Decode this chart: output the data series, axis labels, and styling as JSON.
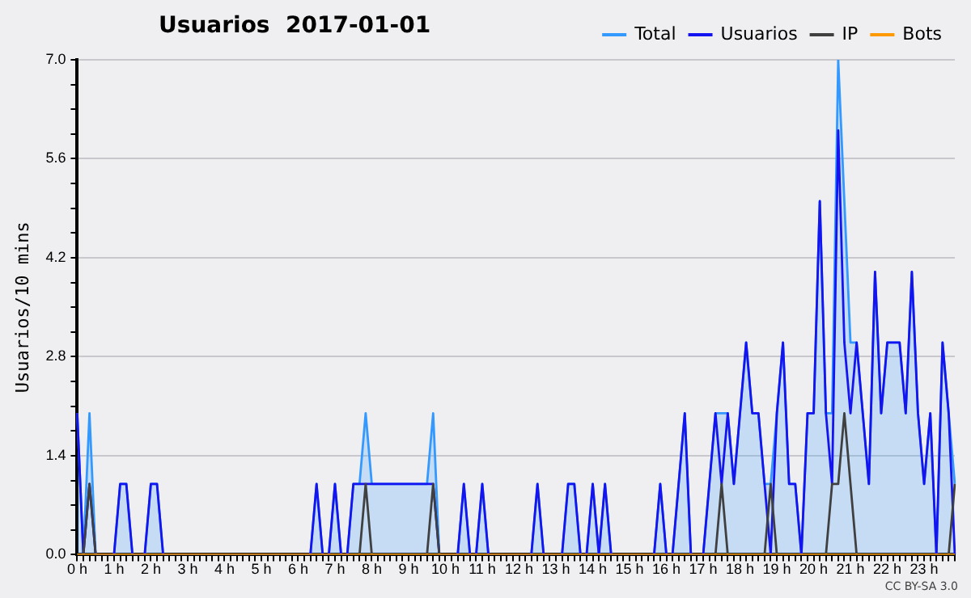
{
  "chart_data": {
    "type": "line",
    "title": "Usuarios  2017-01-01",
    "ylabel": "Usuarios/10 mins",
    "categories": [
      "0 h",
      null,
      null,
      null,
      null,
      null,
      "1 h",
      null,
      null,
      null,
      null,
      null,
      "2 h",
      null,
      null,
      null,
      null,
      null,
      "3 h",
      null,
      null,
      null,
      null,
      null,
      "4 h",
      null,
      null,
      null,
      null,
      null,
      "5 h",
      null,
      null,
      null,
      null,
      null,
      "6 h",
      null,
      null,
      null,
      null,
      null,
      "7 h",
      null,
      null,
      null,
      null,
      null,
      "8 h",
      null,
      null,
      null,
      null,
      null,
      "9 h",
      null,
      null,
      null,
      null,
      null,
      "10 h",
      null,
      null,
      null,
      null,
      null,
      "11 h",
      null,
      null,
      null,
      null,
      null,
      "12 h",
      null,
      null,
      null,
      null,
      null,
      "13 h",
      null,
      null,
      null,
      null,
      null,
      "14 h",
      null,
      null,
      null,
      null,
      null,
      "15 h",
      null,
      null,
      null,
      null,
      null,
      "16 h",
      null,
      null,
      null,
      null,
      null,
      "17 h",
      null,
      null,
      null,
      null,
      null,
      "18 h",
      null,
      null,
      null,
      null,
      null,
      "19 h",
      null,
      null,
      null,
      null,
      null,
      "20 h",
      null,
      null,
      null,
      null,
      null,
      "21 h",
      null,
      null,
      null,
      null,
      null,
      "22 h",
      null,
      null,
      null,
      null,
      null,
      "23 h",
      null,
      null,
      null,
      null,
      null
    ],
    "series": [
      {
        "name": "Total",
        "type": "area",
        "color": "#3399ff",
        "values": [
          2,
          0,
          2,
          0,
          0,
          0,
          0,
          1,
          1,
          0,
          0,
          0,
          1,
          1,
          0,
          0,
          0,
          0,
          0,
          0,
          0,
          0,
          0,
          0,
          0,
          0,
          0,
          0,
          0,
          0,
          0,
          0,
          0,
          0,
          0,
          0,
          0,
          0,
          0,
          1,
          0,
          0,
          1,
          0,
          0,
          1,
          1,
          2,
          1,
          1,
          1,
          1,
          1,
          1,
          1,
          1,
          1,
          1,
          2,
          0,
          0,
          0,
          0,
          1,
          0,
          0,
          1,
          0,
          0,
          0,
          0,
          0,
          0,
          0,
          0,
          1,
          0,
          0,
          0,
          0,
          1,
          1,
          0,
          0,
          1,
          0,
          1,
          0,
          0,
          0,
          0,
          0,
          0,
          0,
          0,
          1,
          0,
          0,
          1,
          2,
          0,
          0,
          0,
          1,
          2,
          2,
          2,
          1,
          2,
          3,
          2,
          2,
          1,
          1,
          2,
          3,
          1,
          1,
          0,
          2,
          2,
          5,
          2,
          2,
          7,
          5,
          3,
          3,
          2,
          1,
          4,
          2,
          3,
          3,
          3,
          2,
          4,
          2,
          1,
          2,
          0,
          3,
          2,
          1
        ]
      },
      {
        "name": "Usuarios",
        "type": "line",
        "color": "#1414f0",
        "values": [
          2,
          0,
          1,
          0,
          0,
          0,
          0,
          1,
          1,
          0,
          0,
          0,
          1,
          1,
          0,
          0,
          0,
          0,
          0,
          0,
          0,
          0,
          0,
          0,
          0,
          0,
          0,
          0,
          0,
          0,
          0,
          0,
          0,
          0,
          0,
          0,
          0,
          0,
          0,
          1,
          0,
          0,
          1,
          0,
          0,
          1,
          1,
          1,
          1,
          1,
          1,
          1,
          1,
          1,
          1,
          1,
          1,
          1,
          1,
          0,
          0,
          0,
          0,
          1,
          0,
          0,
          1,
          0,
          0,
          0,
          0,
          0,
          0,
          0,
          0,
          1,
          0,
          0,
          0,
          0,
          1,
          1,
          0,
          0,
          1,
          0,
          1,
          0,
          0,
          0,
          0,
          0,
          0,
          0,
          0,
          1,
          0,
          0,
          1,
          2,
          0,
          0,
          0,
          1,
          2,
          1,
          2,
          1,
          2,
          3,
          2,
          2,
          1,
          0,
          2,
          3,
          1,
          1,
          0,
          2,
          2,
          5,
          2,
          1,
          6,
          3,
          2,
          3,
          2,
          1,
          4,
          2,
          3,
          3,
          3,
          2,
          4,
          2,
          1,
          2,
          0,
          3,
          2,
          0
        ]
      },
      {
        "name": "IP",
        "type": "line",
        "color": "#404040",
        "values": [
          0,
          0,
          1,
          0,
          0,
          0,
          0,
          0,
          0,
          0,
          0,
          0,
          0,
          0,
          0,
          0,
          0,
          0,
          0,
          0,
          0,
          0,
          0,
          0,
          0,
          0,
          0,
          0,
          0,
          0,
          0,
          0,
          0,
          0,
          0,
          0,
          0,
          0,
          0,
          0,
          0,
          0,
          0,
          0,
          0,
          0,
          0,
          1,
          0,
          0,
          0,
          0,
          0,
          0,
          0,
          0,
          0,
          0,
          1,
          0,
          0,
          0,
          0,
          0,
          0,
          0,
          0,
          0,
          0,
          0,
          0,
          0,
          0,
          0,
          0,
          0,
          0,
          0,
          0,
          0,
          0,
          0,
          0,
          0,
          0,
          0,
          0,
          0,
          0,
          0,
          0,
          0,
          0,
          0,
          0,
          0,
          0,
          0,
          0,
          0,
          0,
          0,
          0,
          0,
          0,
          1,
          0,
          0,
          0,
          0,
          0,
          0,
          0,
          1,
          0,
          0,
          0,
          0,
          0,
          0,
          0,
          0,
          0,
          1,
          1,
          2,
          1,
          0,
          0,
          0,
          0,
          0,
          0,
          0,
          0,
          0,
          0,
          0,
          0,
          0,
          0,
          0,
          0,
          1
        ]
      },
      {
        "name": "Bots",
        "type": "line",
        "color": "#ff9900",
        "values": [
          0,
          0,
          0,
          0,
          0,
          0,
          0,
          0,
          0,
          0,
          0,
          0,
          0,
          0,
          0,
          0,
          0,
          0,
          0,
          0,
          0,
          0,
          0,
          0,
          0,
          0,
          0,
          0,
          0,
          0,
          0,
          0,
          0,
          0,
          0,
          0,
          0,
          0,
          0,
          0,
          0,
          0,
          0,
          0,
          0,
          0,
          0,
          0,
          0,
          0,
          0,
          0,
          0,
          0,
          0,
          0,
          0,
          0,
          0,
          0,
          0,
          0,
          0,
          0,
          0,
          0,
          0,
          0,
          0,
          0,
          0,
          0,
          0,
          0,
          0,
          0,
          0,
          0,
          0,
          0,
          0,
          0,
          0,
          0,
          0,
          0,
          0,
          0,
          0,
          0,
          0,
          0,
          0,
          0,
          0,
          0,
          0,
          0,
          0,
          0,
          0,
          0,
          0,
          0,
          0,
          0,
          0,
          0,
          0,
          0,
          0,
          0,
          0,
          0,
          0,
          0,
          0,
          0,
          0,
          0,
          0,
          0,
          0,
          0,
          0,
          0,
          0,
          0,
          0,
          0,
          0,
          0,
          0,
          0,
          0,
          0,
          0,
          0,
          0,
          0,
          0,
          0,
          0,
          0
        ]
      }
    ],
    "ylim": [
      0,
      7
    ],
    "yticks": [
      {
        "value": 0,
        "label": "0.0"
      },
      {
        "value": 0.35,
        "label": null
      },
      {
        "value": 0.7,
        "label": null
      },
      {
        "value": 1.05,
        "label": null
      },
      {
        "value": 1.4,
        "label": "1.4"
      },
      {
        "value": 1.75,
        "label": null
      },
      {
        "value": 2.1,
        "label": null
      },
      {
        "value": 2.45,
        "label": null
      },
      {
        "value": 2.8,
        "label": "2.8"
      },
      {
        "value": 3.15,
        "label": null
      },
      {
        "value": 3.5,
        "label": null
      },
      {
        "value": 3.85,
        "label": null
      },
      {
        "value": 4.2,
        "label": "4.2"
      },
      {
        "value": 4.55,
        "label": null
      },
      {
        "value": 4.9,
        "label": null
      },
      {
        "value": 5.25,
        "label": null
      },
      {
        "value": 5.6,
        "label": "5.6"
      },
      {
        "value": 5.95,
        "label": null
      },
      {
        "value": 6.3,
        "label": null
      },
      {
        "value": 6.65,
        "label": null
      },
      {
        "value": 7,
        "label": "7.0"
      }
    ],
    "grid": "y",
    "legend": "top right",
    "marker": "none",
    "line_style": "solid",
    "annotations": [
      "CC BY-SA 3.0"
    ]
  }
}
